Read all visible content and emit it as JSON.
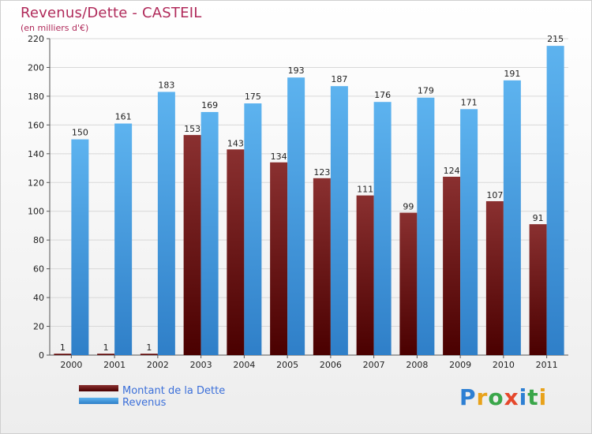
{
  "chart_data": {
    "type": "bar",
    "title": "Revenus/Dette - CASTEIL",
    "subtitle": "(en milliers d'€)",
    "categories": [
      "2000",
      "2001",
      "2002",
      "2003",
      "2004",
      "2005",
      "2006",
      "2007",
      "2008",
      "2009",
      "2010",
      "2011"
    ],
    "series": [
      {
        "name": "Montant de la Dette",
        "values": [
          1,
          1,
          1,
          153,
          143,
          134,
          123,
          111,
          99,
          124,
          107,
          91
        ],
        "color": "#7a1f1f"
      },
      {
        "name": "Revenus",
        "values": [
          150,
          161,
          183,
          169,
          175,
          193,
          187,
          176,
          179,
          171,
          191,
          215
        ],
        "color": "#4aa3e6"
      }
    ],
    "ylim": [
      0,
      220
    ],
    "yticks": [
      0,
      20,
      40,
      60,
      80,
      100,
      120,
      140,
      160,
      180,
      200,
      220
    ],
    "grid": true,
    "legend": "bottom-left"
  },
  "logo": {
    "text": "Proxiti"
  },
  "colors": {
    "title": "#b02a5a",
    "legend_text": "#3b6fd9",
    "debt_dark": "#4a0000",
    "debt_light": "#8a3030",
    "rev_dark": "#2f7fc8",
    "rev_light": "#5ab0ee"
  }
}
